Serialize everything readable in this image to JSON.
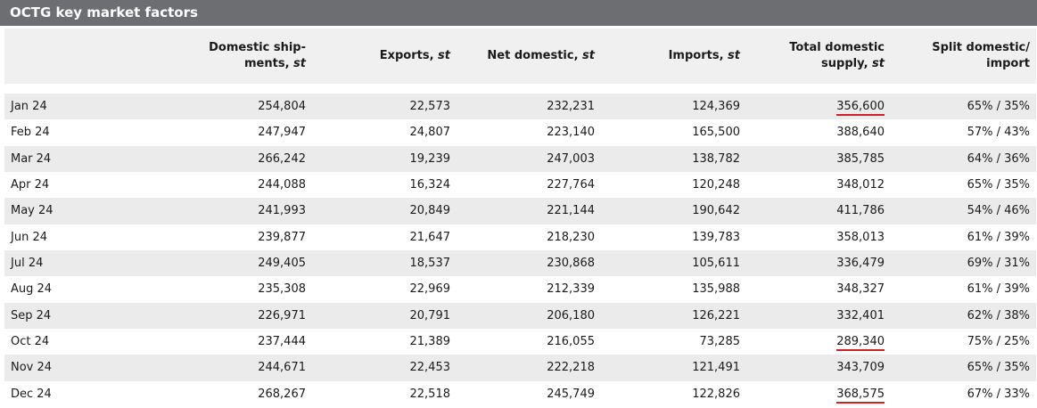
{
  "title": "OCTG key market factors",
  "columns": {
    "month": "",
    "domestic_shipments": {
      "line1": "Domestic ship-",
      "line2_text": "ments, ",
      "unit": "st"
    },
    "exports": {
      "text": "Exports, ",
      "unit": "st"
    },
    "net_domestic": {
      "text": "Net domestic, ",
      "unit": "st"
    },
    "imports": {
      "text": "Imports, ",
      "unit": "st"
    },
    "total_domestic_supply": {
      "line1": "Total domestic",
      "line2_text": "supply, ",
      "unit": "st"
    },
    "split": {
      "line1": "Split domestic/",
      "line2": "import"
    }
  },
  "rows": [
    {
      "month": "Jan 24",
      "domestic_shipments": "254,804",
      "exports": "22,573",
      "net_domestic": "232,231",
      "imports": "124,369",
      "total_domestic_supply": "356,600",
      "split": "65% / 35%",
      "highlight": true
    },
    {
      "month": "Feb 24",
      "domestic_shipments": "247,947",
      "exports": "24,807",
      "net_domestic": "223,140",
      "imports": "165,500",
      "total_domestic_supply": "388,640",
      "split": "57% / 43%",
      "highlight": false
    },
    {
      "month": "Mar 24",
      "domestic_shipments": "266,242",
      "exports": "19,239",
      "net_domestic": "247,003",
      "imports": "138,782",
      "total_domestic_supply": "385,785",
      "split": "64% / 36%",
      "highlight": false
    },
    {
      "month": "Apr 24",
      "domestic_shipments": "244,088",
      "exports": "16,324",
      "net_domestic": "227,764",
      "imports": "120,248",
      "total_domestic_supply": "348,012",
      "split": "65% / 35%",
      "highlight": false
    },
    {
      "month": "May 24",
      "domestic_shipments": "241,993",
      "exports": "20,849",
      "net_domestic": "221,144",
      "imports": "190,642",
      "total_domestic_supply": "411,786",
      "split": "54% / 46%",
      "highlight": false
    },
    {
      "month": "Jun 24",
      "domestic_shipments": "239,877",
      "exports": "21,647",
      "net_domestic": "218,230",
      "imports": "139,783",
      "total_domestic_supply": "358,013",
      "split": "61% / 39%",
      "highlight": false
    },
    {
      "month": "Jul 24",
      "domestic_shipments": "249,405",
      "exports": "18,537",
      "net_domestic": "230,868",
      "imports": "105,611",
      "total_domestic_supply": "336,479",
      "split": "69% / 31%",
      "highlight": false
    },
    {
      "month": "Aug 24",
      "domestic_shipments": "235,308",
      "exports": "22,969",
      "net_domestic": "212,339",
      "imports": "135,988",
      "total_domestic_supply": "348,327",
      "split": "61% / 39%",
      "highlight": false
    },
    {
      "month": "Sep 24",
      "domestic_shipments": "226,971",
      "exports": "20,791",
      "net_domestic": "206,180",
      "imports": "126,221",
      "total_domestic_supply": "332,401",
      "split": "62% / 38%",
      "highlight": false
    },
    {
      "month": "Oct 24",
      "domestic_shipments": "237,444",
      "exports": "21,389",
      "net_domestic": "216,055",
      "imports": "73,285",
      "total_domestic_supply": "289,340",
      "split": "75% / 25%",
      "highlight": true
    },
    {
      "month": "Nov 24",
      "domestic_shipments": "244,671",
      "exports": "22,453",
      "net_domestic": "222,218",
      "imports": "121,491",
      "total_domestic_supply": "343,709",
      "split": "65% / 35%",
      "highlight": false
    },
    {
      "month": "Dec 24",
      "domestic_shipments": "268,267",
      "exports": "22,518",
      "net_domestic": "245,749",
      "imports": "122,826",
      "total_domestic_supply": "368,575",
      "split": "67% / 33%",
      "highlight": true
    }
  ],
  "colors": {
    "title_bar": "#6d6e71",
    "header_bg": "#f0f0f0",
    "row_shade": "#ebebeb",
    "highlight_underline": "#d0202a"
  }
}
